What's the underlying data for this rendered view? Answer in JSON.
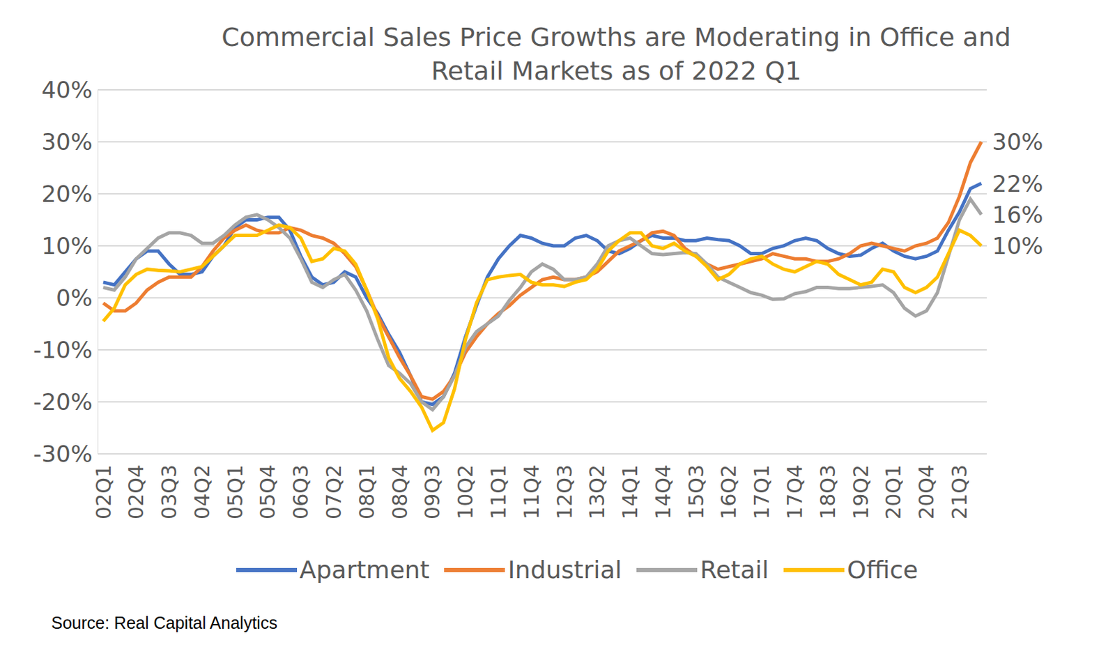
{
  "chart_data": {
    "type": "line",
    "title": "Commercial Sales Price Growths are Moderating in Office and Retail Markets as of 2022 Q1",
    "source": "Source: Real Capital Analytics",
    "categories": [
      "02Q1",
      null,
      null,
      "02Q4",
      null,
      null,
      "03Q3",
      null,
      null,
      "04Q2",
      null,
      null,
      "05Q1",
      null,
      null,
      "05Q4",
      null,
      null,
      "06Q3",
      null,
      null,
      "07Q2",
      null,
      null,
      "08Q1",
      null,
      null,
      "08Q4",
      null,
      null,
      "09Q3",
      null,
      null,
      "10Q2",
      null,
      null,
      "11Q1",
      null,
      null,
      "11Q4",
      null,
      null,
      "12Q3",
      null,
      null,
      "13Q2",
      null,
      null,
      "14Q1",
      null,
      null,
      "14Q4",
      null,
      null,
      "15Q3",
      null,
      null,
      "16Q2",
      null,
      null,
      "17Q1",
      null,
      null,
      "17Q4",
      null,
      null,
      "18Q3",
      null,
      null,
      "19Q2",
      null,
      null,
      "20Q1",
      null,
      null,
      "20Q4",
      null,
      null,
      "21Q3",
      null,
      null
    ],
    "series": [
      {
        "name": "Apartment",
        "color": "#4472C4",
        "end_label": "22%",
        "values": [
          3,
          2.5,
          5,
          7.5,
          9,
          9,
          6.5,
          4.5,
          4.5,
          5,
          8,
          10,
          13.5,
          15,
          15,
          15.5,
          15.5,
          13,
          8,
          4,
          2.5,
          3,
          5,
          4,
          0,
          -3,
          -7,
          -10.5,
          -15,
          -20,
          -20.5,
          -19,
          -14.5,
          -7.5,
          -1.5,
          4,
          7.5,
          10,
          12,
          11.5,
          10.5,
          10,
          10,
          11.5,
          12,
          11,
          9,
          8.5,
          9.5,
          11,
          12,
          11.5,
          11.5,
          11,
          11,
          11.5,
          11.2,
          11,
          10,
          8.5,
          8.5,
          9.5,
          10,
          11,
          11.5,
          11,
          9.5,
          8.5,
          8,
          8.2,
          9.5,
          10.5,
          9,
          8,
          7.5,
          8,
          9,
          13,
          16.5,
          21,
          22
        ]
      },
      {
        "name": "Industrial",
        "color": "#ED7D31",
        "end_label": "30%",
        "values": [
          -1,
          -2.5,
          -2.5,
          -1,
          1.5,
          3,
          4,
          4,
          4,
          6,
          9,
          11.5,
          13,
          14,
          13,
          12.5,
          12.5,
          13.5,
          13,
          12,
          11.5,
          10.5,
          8.5,
          6,
          1.5,
          -3.5,
          -7.5,
          -11.5,
          -15,
          -19,
          -19.5,
          -18,
          -15,
          -10.5,
          -7.5,
          -5,
          -3,
          -1.5,
          0.5,
          2,
          3.5,
          4,
          3.5,
          3.5,
          4,
          5,
          7,
          9,
          10,
          11,
          12.5,
          12.8,
          12,
          9.5,
          8,
          6.5,
          5.5,
          6,
          6.5,
          7,
          7.5,
          8.5,
          8,
          7.5,
          7.5,
          7,
          7,
          7.5,
          8.5,
          10,
          10.5,
          10,
          9.5,
          9,
          10,
          10.5,
          11.5,
          14.5,
          19.5,
          26,
          30
        ]
      },
      {
        "name": "Retail",
        "color": "#A5A5A5",
        "end_label": "16%",
        "values": [
          2,
          1.5,
          4,
          7.5,
          9.5,
          11.5,
          12.5,
          12.5,
          12,
          10.5,
          10.5,
          12,
          14,
          15.5,
          16,
          15,
          13.5,
          11.5,
          7.5,
          3,
          2,
          3.5,
          4.5,
          1.5,
          -2.5,
          -8,
          -13,
          -14.5,
          -16.5,
          -20,
          -21.5,
          -19,
          -15,
          -9.5,
          -6.5,
          -5,
          -3.5,
          -0.5,
          2,
          5,
          6.5,
          5.5,
          3.5,
          3.5,
          4,
          6.5,
          10,
          11,
          11.5,
          10,
          8.5,
          8.3,
          8.5,
          8.7,
          8.5,
          6.5,
          4,
          3,
          2,
          1,
          0.5,
          -0.3,
          -0.2,
          0.8,
          1.2,
          2,
          2,
          1.8,
          1.8,
          2,
          2.2,
          2.5,
          1,
          -2,
          -3.5,
          -2.5,
          1,
          8,
          15,
          19,
          16
        ]
      },
      {
        "name": "Office",
        "color": "#FFC000",
        "end_label": "10%",
        "values": [
          -4.5,
          -2,
          2.5,
          4.5,
          5.5,
          5.3,
          5.2,
          5,
          5.5,
          6,
          8,
          10,
          12,
          12,
          12,
          13,
          14,
          13.5,
          11.5,
          7,
          7.5,
          9.5,
          9,
          6.5,
          1.5,
          -4,
          -11.5,
          -15.5,
          -18,
          -21,
          -25.5,
          -24,
          -17.5,
          -8,
          -1,
          3.5,
          4,
          4.3,
          4.5,
          3,
          2.5,
          2.5,
          2.2,
          3,
          3.5,
          5.5,
          9,
          11,
          12.5,
          12.5,
          10,
          9.5,
          10.5,
          9,
          8,
          6,
          3.5,
          4.5,
          6.5,
          7.5,
          8,
          6.5,
          5.5,
          5,
          6,
          7,
          6.5,
          4.5,
          3.5,
          2.5,
          3,
          5.5,
          5,
          2,
          1,
          2,
          4,
          8.5,
          13,
          12,
          10
        ]
      }
    ],
    "ylim": [
      -30,
      40
    ],
    "yticks": [
      {
        "value": -30,
        "label": "-30%"
      },
      {
        "value": -20,
        "label": "-20%"
      },
      {
        "value": -10,
        "label": "-10%"
      },
      {
        "value": 0,
        "label": "0%"
      },
      {
        "value": 10,
        "label": "10%"
      },
      {
        "value": 20,
        "label": "20%"
      },
      {
        "value": 30,
        "label": "30%"
      },
      {
        "value": 40,
        "label": "40%"
      }
    ],
    "grid": true,
    "legend": "bottom"
  }
}
